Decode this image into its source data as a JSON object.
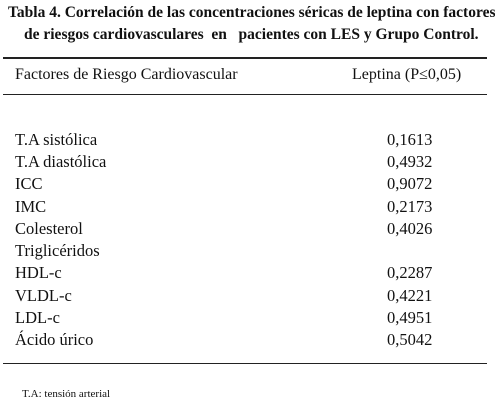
{
  "caption": {
    "lines": [
      "Tabla 4. Correlación de las concentraciones séricas de leptina con factores",
      "de riesgos cardiovasculares  en   pacientes con LES y Grupo Control."
    ]
  },
  "table": {
    "header": [
      "Factores de Riesgo Cardiovascular",
      "Leptina (P≤0,05)"
    ],
    "rows": [
      [
        "T.A sistólica",
        "0,1613"
      ],
      [
        "T.A diastólica",
        "0,4932"
      ],
      [
        "ICC",
        "0,9072"
      ],
      [
        "IMC",
        "0,2173"
      ],
      [
        "Colesterol",
        "0,4026"
      ],
      [
        "Triglicéridos"
      ],
      [
        "HDL-c",
        "0,2287"
      ],
      [
        "VLDL-c",
        "0,4221"
      ],
      [
        "LDL-c",
        "0,4951"
      ],
      [
        "Ácido úrico",
        "0,5042"
      ]
    ]
  },
  "footnote": "T.A: tensión arterial"
}
